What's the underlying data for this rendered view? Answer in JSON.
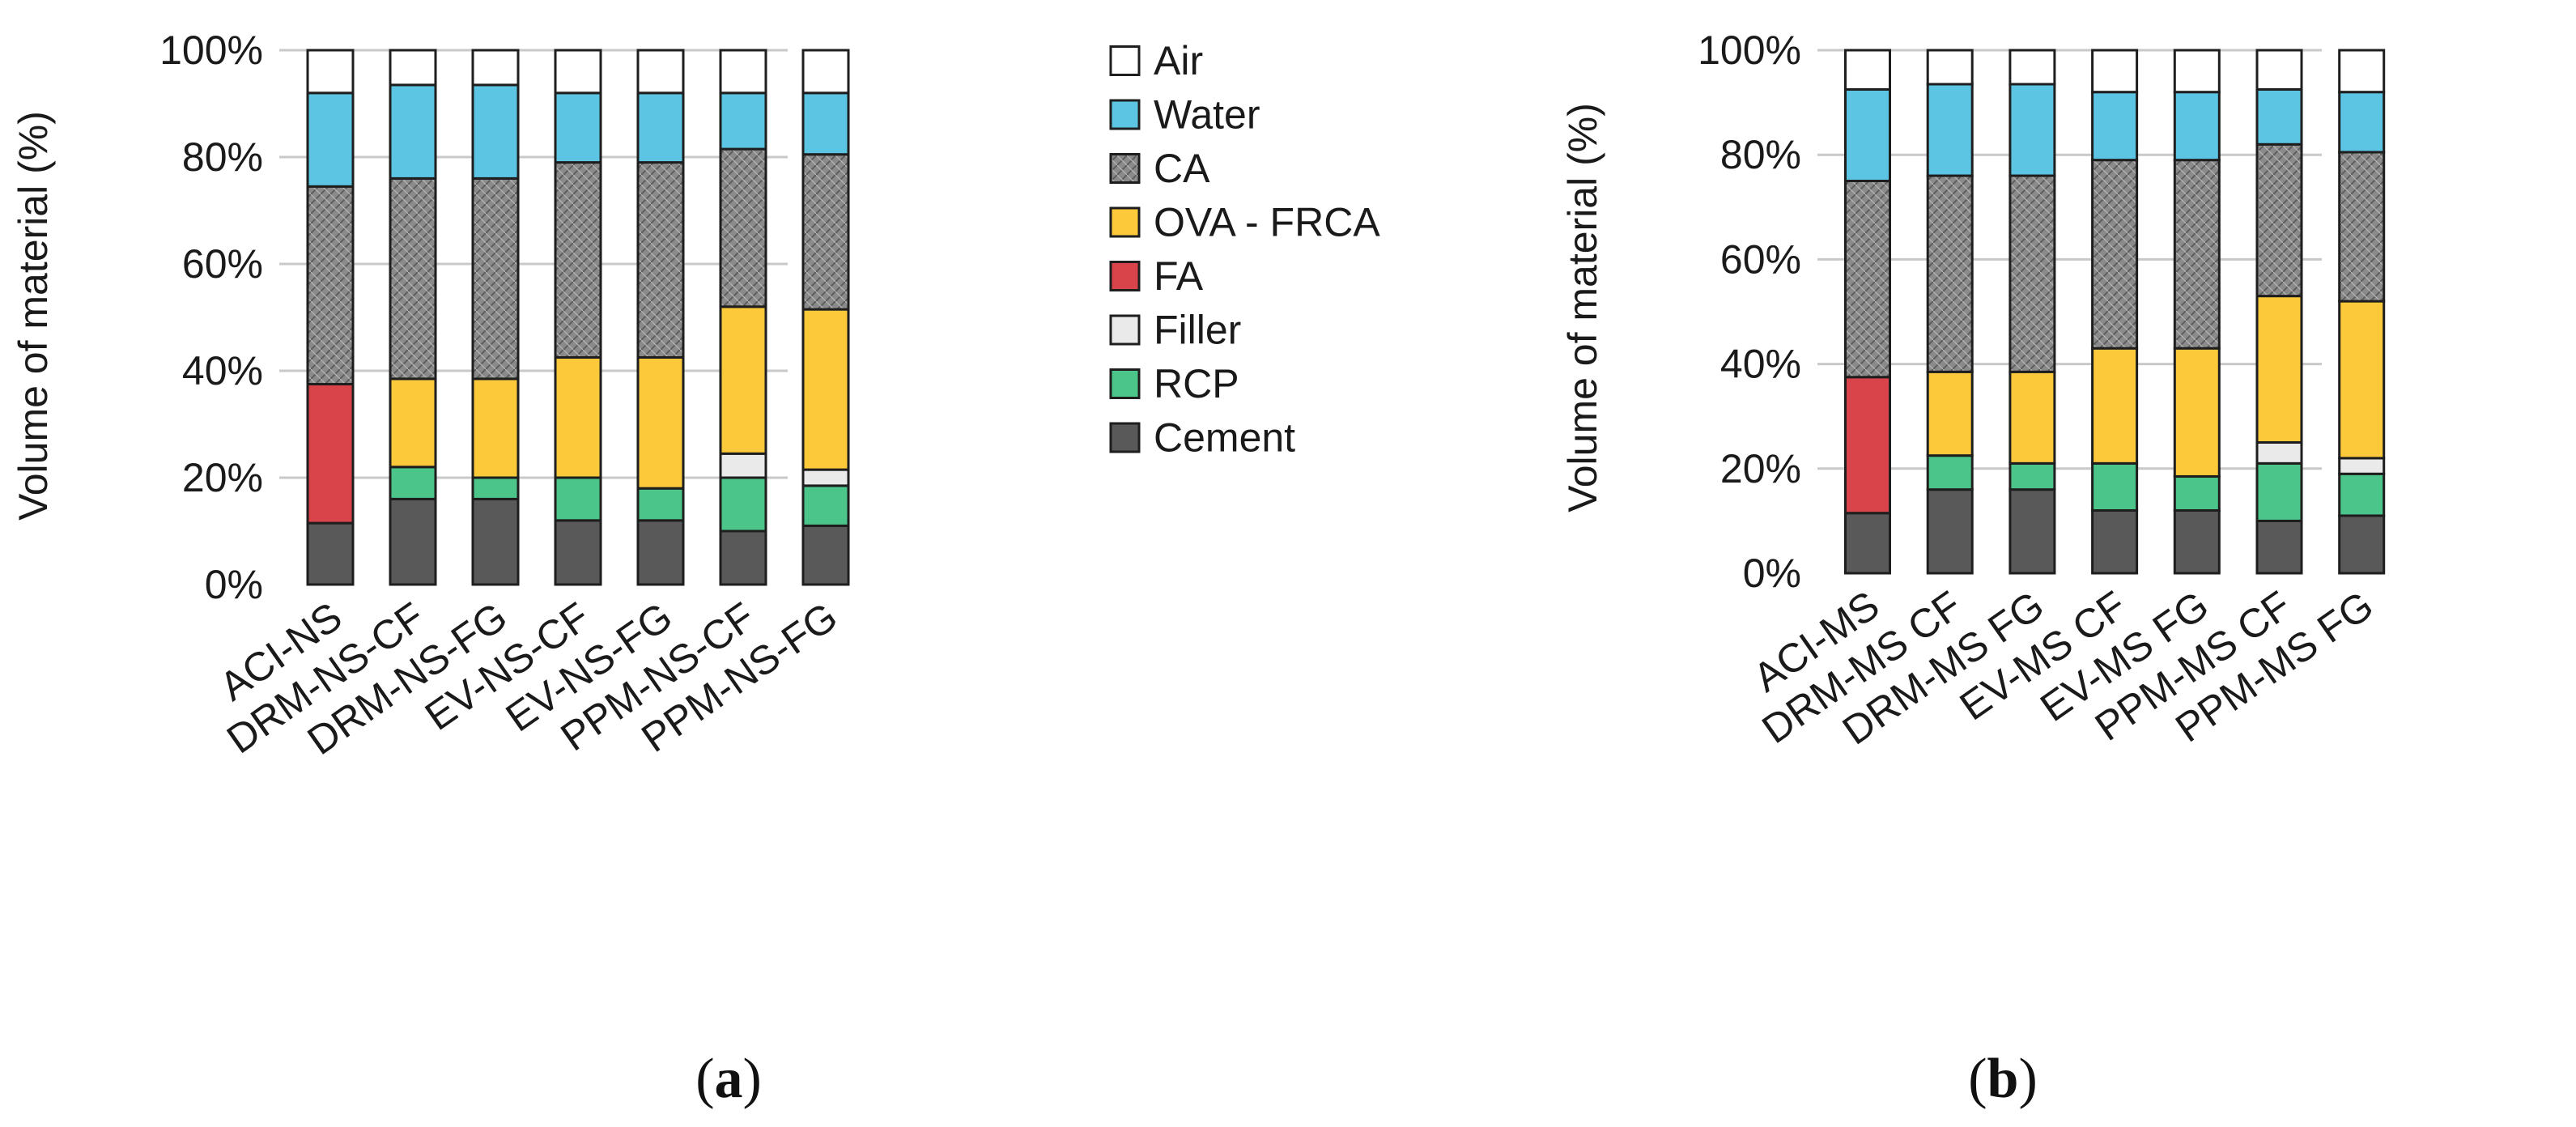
{
  "chart_data": [
    {
      "type": "bar",
      "stacked": true,
      "normalized": true,
      "panel": "a",
      "caption_pre": "(",
      "caption_letter": "a",
      "caption_post": ")",
      "ylabel": "Volume of material (%)",
      "ylim": [
        0,
        100
      ],
      "yticks": [
        "0%",
        "20%",
        "40%",
        "60%",
        "80%",
        "100%"
      ],
      "grid": true,
      "categories": [
        "ACI-NS",
        "DRM-NS-CF",
        "DRM-NS-FG",
        "EV-NS-CF",
        "EV-NS-FG",
        "PPM-NS-CF",
        "PPM-NS-FG"
      ],
      "series": [
        {
          "name": "Cement",
          "values": [
            11.5,
            16,
            16,
            12,
            12,
            10,
            11
          ]
        },
        {
          "name": "RCP",
          "values": [
            0,
            6,
            4,
            8,
            6,
            10,
            7.5
          ]
        },
        {
          "name": "Filler",
          "values": [
            0,
            0,
            0,
            0,
            0,
            4.5,
            3
          ]
        },
        {
          "name": "FA",
          "values": [
            26,
            0,
            0,
            0,
            0,
            0,
            0
          ]
        },
        {
          "name": "OVA - FRCA",
          "values": [
            0,
            16.5,
            18.5,
            22.5,
            24.5,
            27.5,
            30
          ]
        },
        {
          "name": "CA",
          "values": [
            37,
            37.5,
            37.5,
            36.5,
            36.5,
            29.5,
            29
          ]
        },
        {
          "name": "Water",
          "values": [
            17.5,
            17.5,
            17.5,
            13,
            13,
            10.5,
            11.5
          ]
        },
        {
          "name": "Air",
          "values": [
            8,
            6.5,
            6.5,
            8,
            8,
            8,
            8
          ]
        }
      ],
      "legend": {
        "position": "right",
        "order": [
          "Air",
          "Water",
          "CA",
          "OVA - FRCA",
          "FA",
          "Filler",
          "RCP",
          "Cement"
        ]
      }
    },
    {
      "type": "bar",
      "stacked": true,
      "normalized": true,
      "panel": "b",
      "caption_pre": "(",
      "caption_letter": "b",
      "caption_post": ")",
      "ylabel": "Volume of material (%)",
      "ylim": [
        0,
        100
      ],
      "yticks": [
        "0%",
        "20%",
        "40%",
        "60%",
        "80%",
        "100%"
      ],
      "grid": true,
      "categories": [
        "ACI-MS",
        "DRM-MS CF",
        "DRM-MS FG",
        "EV-MS CF",
        "EV-MS FG",
        "PPM-MS CF",
        "PPM-MS FG"
      ],
      "series": [
        {
          "name": "Cement",
          "values": [
            11.5,
            16,
            16,
            12,
            12,
            10,
            11
          ]
        },
        {
          "name": "RCP",
          "values": [
            0,
            6.5,
            5,
            9,
            6.5,
            11,
            8
          ]
        },
        {
          "name": "Filler",
          "values": [
            0,
            0,
            0,
            0,
            0,
            4,
            3
          ]
        },
        {
          "name": "FA",
          "values": [
            26,
            0,
            0,
            0,
            0,
            0,
            0
          ]
        },
        {
          "name": "OVA - FRCA",
          "values": [
            0,
            16,
            17.5,
            22,
            24.5,
            28,
            30
          ]
        },
        {
          "name": "CA",
          "values": [
            37.5,
            37.5,
            37.5,
            36,
            36,
            29,
            28.5
          ]
        },
        {
          "name": "Water",
          "values": [
            17.5,
            17.5,
            17.5,
            13,
            13,
            10.5,
            11.5
          ]
        },
        {
          "name": "Air",
          "values": [
            7.5,
            6.5,
            6.5,
            8,
            8,
            7.5,
            8
          ]
        }
      ]
    }
  ],
  "colors": {
    "Cement": "#595959",
    "RCP": "#4cc58a",
    "Filler": "#eaeaea",
    "FA": "#d9434a",
    "OVA - FRCA": "#fcc93a",
    "CA": "#8a8a8a",
    "Water": "#5cc5e4",
    "Air": "#ffffff",
    "grid": "#c9c9c9",
    "outline": "#1e1e1e"
  }
}
